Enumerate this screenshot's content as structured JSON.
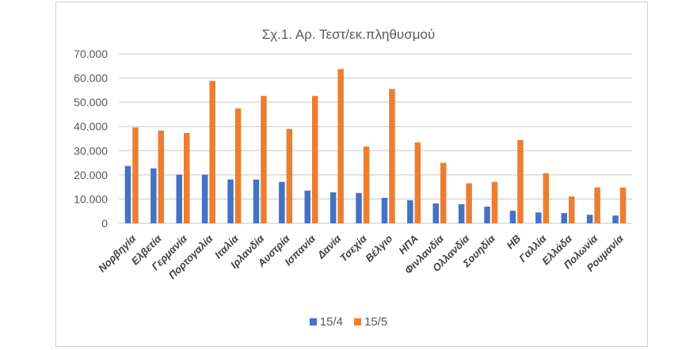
{
  "chart_data": {
    "type": "bar",
    "title": "Σχ.1.  Αρ. Τεστ/εκ.πληθυσμού",
    "xlabel": "",
    "ylabel": "",
    "ylim": [
      0,
      70000
    ],
    "yticks": [
      0,
      10000,
      20000,
      30000,
      40000,
      50000,
      60000,
      70000
    ],
    "ytick_labels": [
      "0",
      "10.000",
      "20.000",
      "30.000",
      "40.000",
      "50.000",
      "60.000",
      "70.000"
    ],
    "grid": true,
    "legend_position": "bottom",
    "categories": [
      "Νορβηγία",
      "Ελβετία",
      "Γερμανία",
      "Πορτογαλία",
      "Ιταλία",
      "Ιρλανδία",
      "Αυστρία",
      "Ισπανία",
      "Δανία",
      "Τσεχία",
      "Βέλγιο",
      "ΗΠΑ",
      "Φινλανδία",
      "Ολλανδία",
      "Σουηδία",
      "ΗΒ",
      "Γαλλία",
      "Ελλάδα",
      "Πολωνία",
      "Ρουμανία"
    ],
    "series": [
      {
        "name": "15/4",
        "color": "#4472c4",
        "values": [
          23700,
          22700,
          20100,
          20100,
          18100,
          18100,
          17100,
          13500,
          12800,
          12500,
          10500,
          9500,
          8200,
          7900,
          6900,
          5200,
          4500,
          4200,
          3500,
          3200
        ]
      },
      {
        "name": "15/5",
        "color": "#ed7d31",
        "values": [
          39600,
          38300,
          37300,
          58800,
          47500,
          52600,
          39000,
          52600,
          63700,
          31700,
          55500,
          33400,
          25000,
          16500,
          17100,
          34400,
          20700,
          11100,
          14800,
          14800
        ]
      }
    ]
  }
}
